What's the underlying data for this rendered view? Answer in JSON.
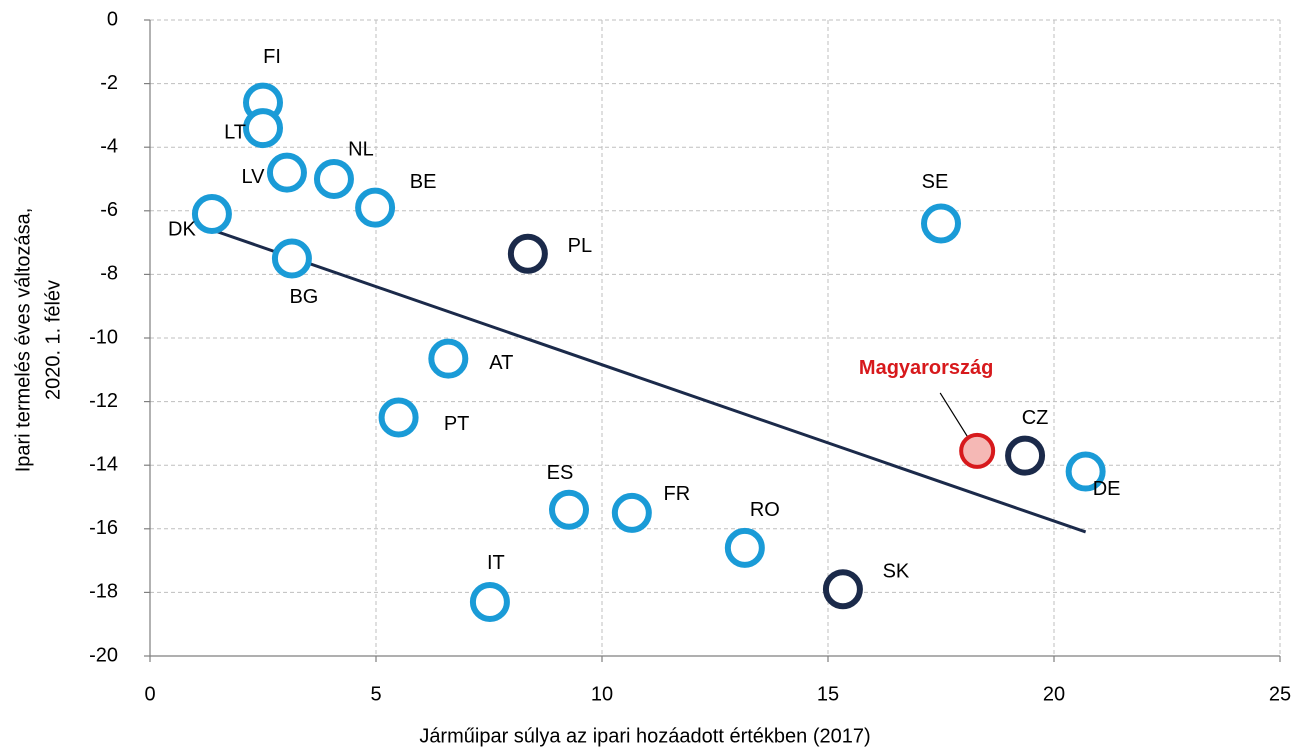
{
  "chart_data": {
    "type": "scatter",
    "xlabel": "Járműipar súlya az ipari hozáadott értékben (2017)",
    "ylabel": [
      "Ipari termelés éves változása,",
      "2020. 1. félév"
    ],
    "xlim": [
      0,
      25
    ],
    "xticks": [
      0,
      5,
      10,
      15,
      20,
      25
    ],
    "ylim": [
      -20,
      0
    ],
    "yticks": [
      0,
      -2,
      -4,
      -6,
      -8,
      -10,
      -12,
      -14,
      -16,
      -18,
      -20
    ],
    "grid": true,
    "series": [
      {
        "color": "#1a9bd7",
        "fill": "#ffffff",
        "labels": [
          "FI",
          "LT",
          "LV",
          "NL",
          "BE",
          "DK",
          "BG",
          "SE",
          "AT",
          "PT",
          "DE",
          "ES",
          "FR",
          "RO",
          "IT"
        ],
        "x": [
          2.5,
          2.5,
          3.03,
          4.07,
          4.98,
          1.37,
          3.14,
          17.5,
          6.6,
          5.5,
          20.7,
          9.27,
          10.66,
          13.16,
          7.52
        ],
        "values": [
          -2.6,
          -3.4,
          -4.8,
          -5.0,
          -5.9,
          -6.1,
          -7.5,
          -6.4,
          -10.65,
          -12.5,
          -14.2,
          -15.4,
          -15.5,
          -16.6,
          -18.3
        ]
      },
      {
        "color": "#1b2a4a",
        "fill": "#ffffff",
        "labels": [
          "PL",
          "CZ",
          "SK"
        ],
        "x": [
          8.36,
          19.36,
          15.33
        ],
        "values": [
          -7.35,
          -13.7,
          -17.9
        ]
      },
      {
        "color": "#d7191c",
        "fill": "#f5b8b5",
        "label_color": "#d7191c",
        "labels": [
          "Magyarország"
        ],
        "x": [
          18.3
        ],
        "values": [
          -13.55
        ]
      }
    ],
    "trendline": {
      "color": "#1b2a4a",
      "x": [
        1.37,
        20.7
      ],
      "values": [
        -6.6,
        -16.1
      ]
    }
  }
}
